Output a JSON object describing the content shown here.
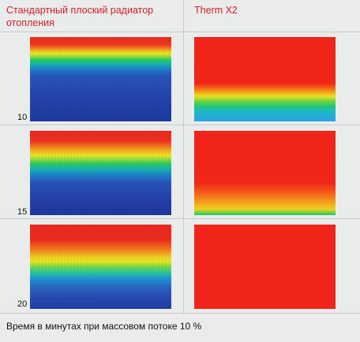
{
  "headers": {
    "left": "Стандартный плоский радиатор отопления",
    "right": "Therm X2"
  },
  "rows": [
    {
      "time_label": "10",
      "standard_gradient": "linear-gradient(180deg,#ee2a22 0%,#f03a20 9%,#f5a020 15%,#f0e820 19%,#9ee040 23%,#2ccc5a 27%,#14b8b0 32%,#1e82cc 38%,#2856bc 46%,#2445b0 70%,#1f3aa0 100%)",
      "therm_gradient": "linear-gradient(180deg,#f02418 0%,#f02618 55%,#f29018 64%,#f0e020 70%,#60d048 77%,#28c870 82%,#1cb8c8 88%,#2aa0e0 100%)"
    },
    {
      "time_label": "15",
      "standard_gradient": "linear-gradient(180deg,#ee2a22 0%,#f03020 12%,#f6a020 22%,#f2e624 29%,#8ede44 34%,#2ccc5a 39%,#16b6b0 45%,#1f80cc 53%,#2854bc 62%,#2442ae 80%,#1f38a0 100%)",
      "therm_gradient": "linear-gradient(180deg,#f02418 0%,#f02618 62%,#f4601a 74%,#f2a01c 85%,#f0d020 93%,#70d040 97%,#20c868 100%)"
    },
    {
      "time_label": "20",
      "standard_gradient": "linear-gradient(180deg,#ee2a22 0%,#f02c20 18%,#f6801e 30%,#f4cc22 38%,#e8ea24 44%,#7ad848 50%,#28c8a0 57%,#1e96d4 64%,#2a66c4 74%,#2648b2 88%,#2040a6 100%)",
      "therm_gradient": "linear-gradient(180deg,#f02418 0%,#f02418 100%)"
    }
  ],
  "footer": "Время в минутах при массовом потоке 10 %"
}
